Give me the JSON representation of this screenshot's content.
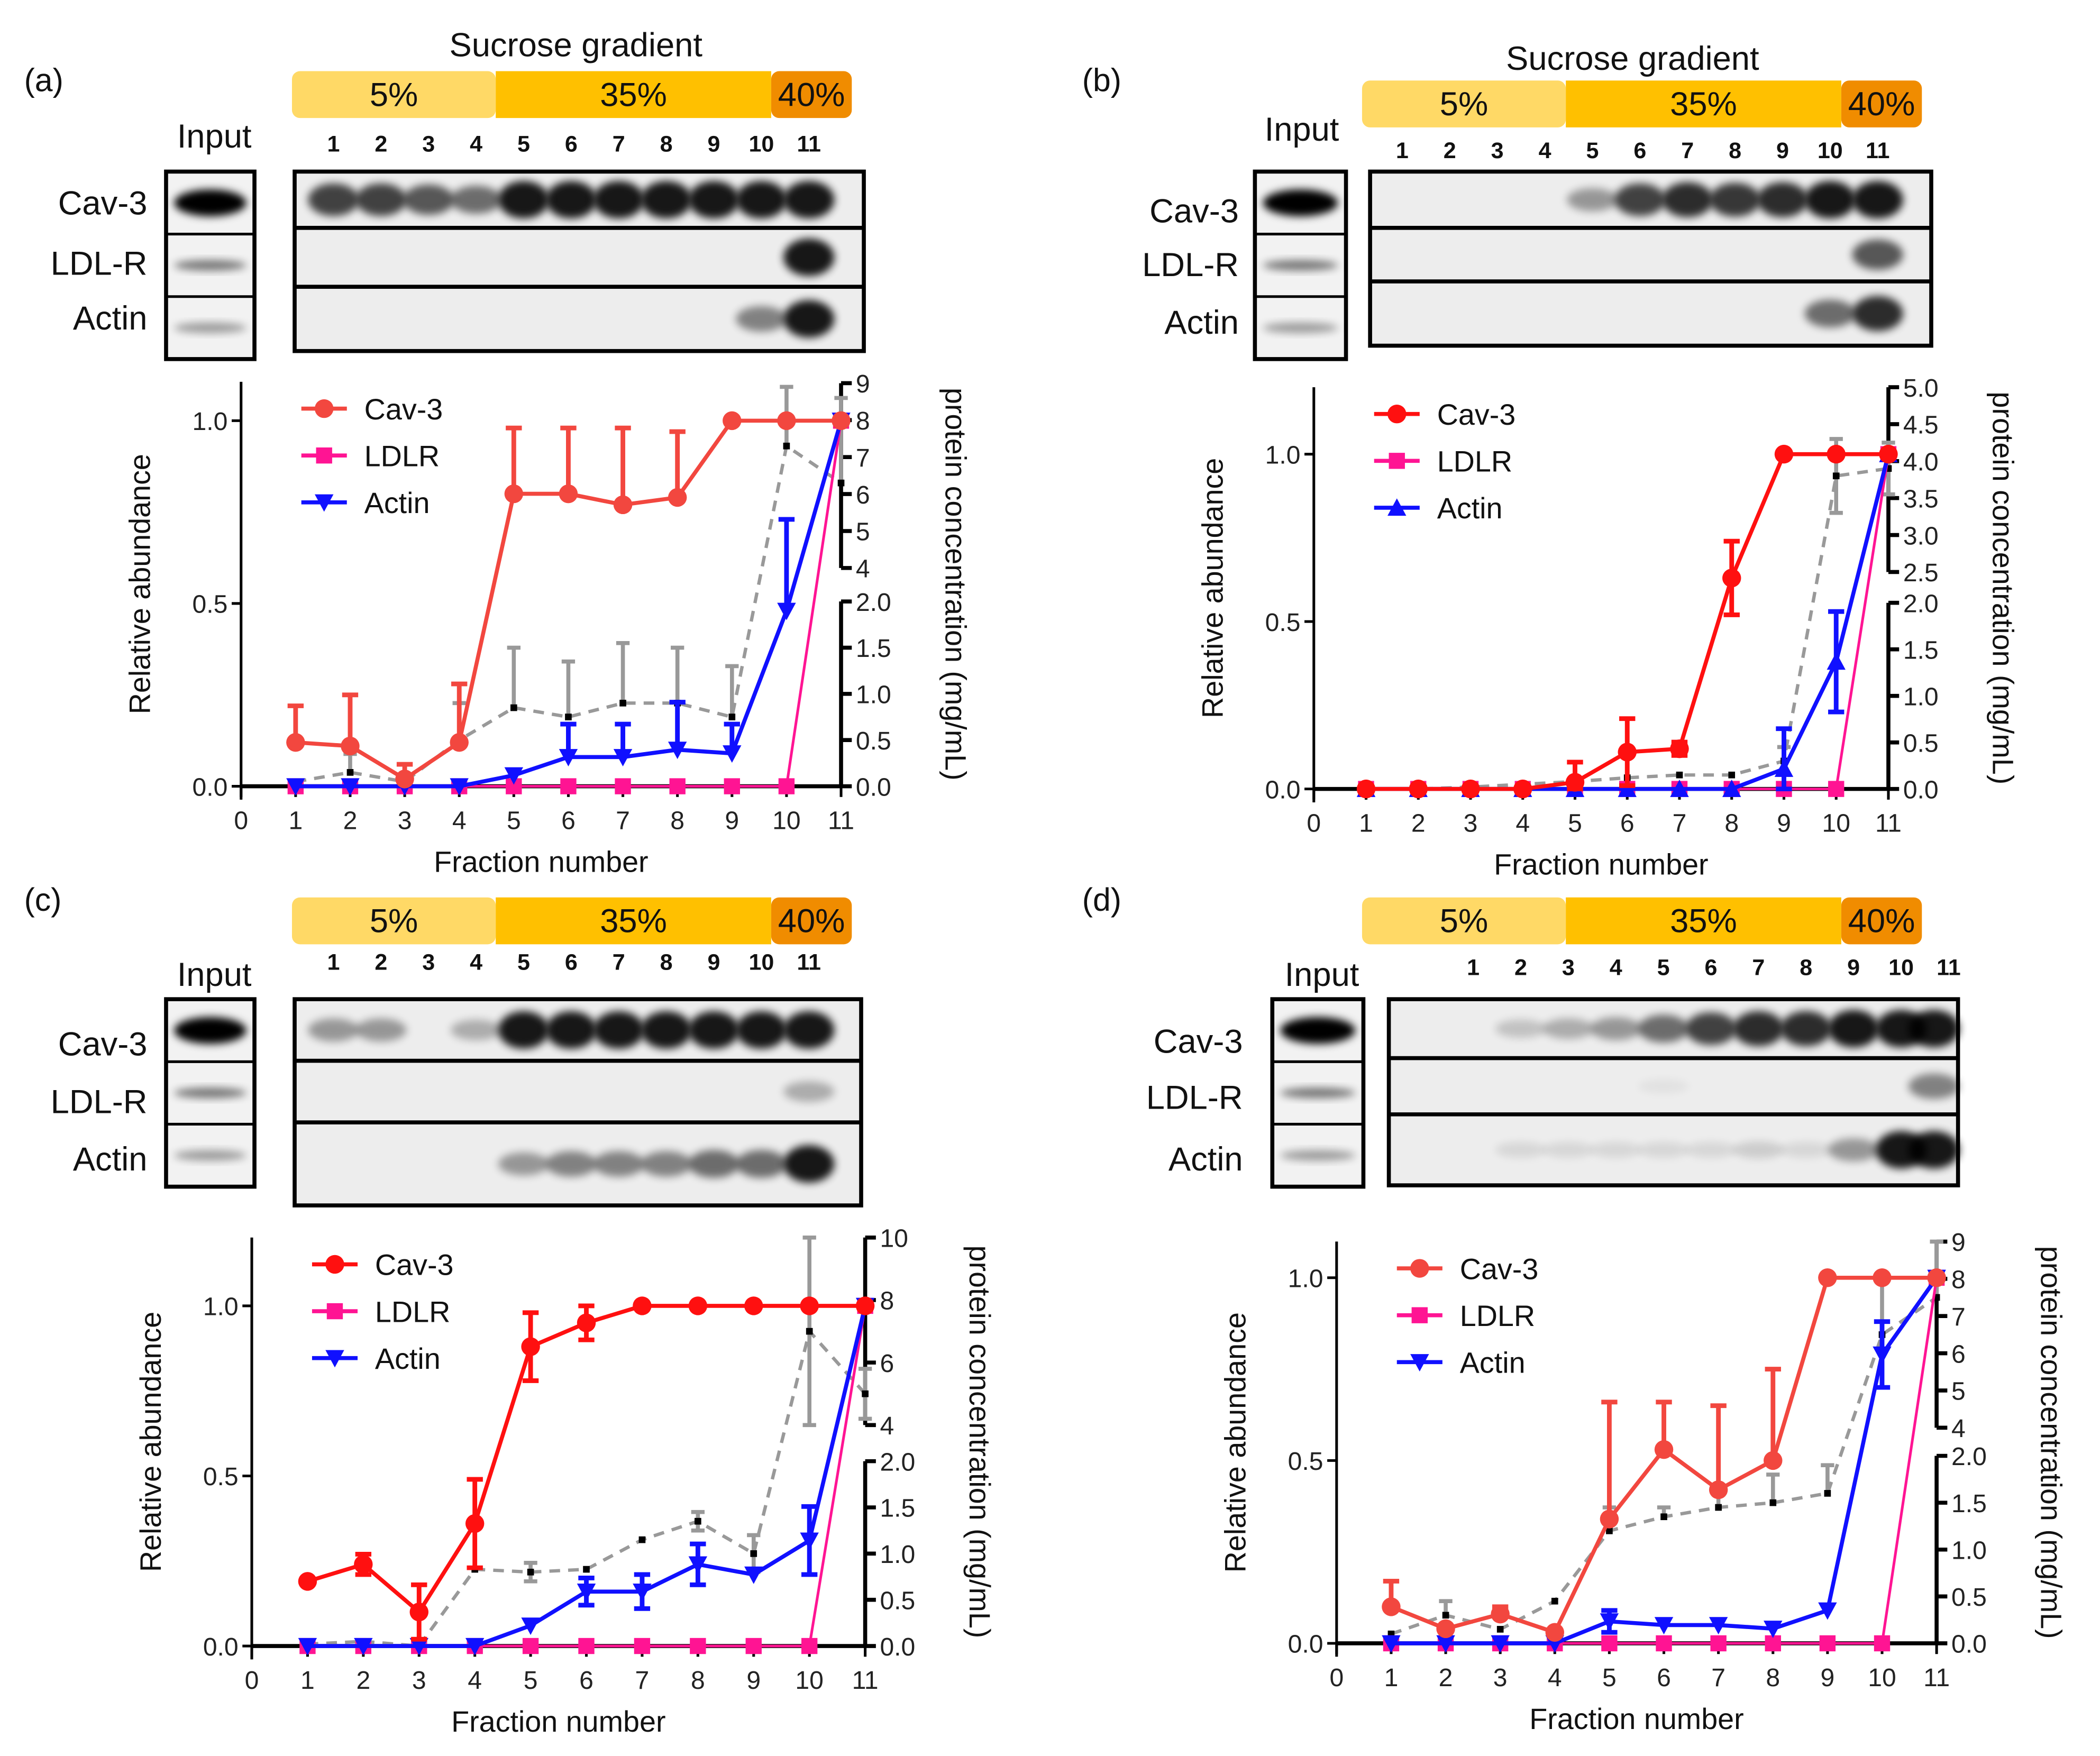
{
  "colors": {
    "cav3_light": "#f2473f",
    "cav3_red": "#ff1010",
    "ldlr": "#ff1493",
    "actin": "#1010ff",
    "protein": "#999999",
    "g5": "#ffd966",
    "g35": "#ffc000",
    "g40": "#f08c00"
  },
  "common": {
    "gradient_title": "Sucrose gradient",
    "gradient_labels": [
      "5%",
      "35%",
      "40%"
    ],
    "fractions": [
      "1",
      "2",
      "3",
      "4",
      "5",
      "6",
      "7",
      "8",
      "9",
      "10",
      "11"
    ],
    "input_label": "Input",
    "blot_labels": [
      "Cav-3",
      "LDL-R",
      "Actin"
    ],
    "xlabel": "Fraction number",
    "ylabel": "Relative abundance",
    "y2label": "protein concentration (mg/mL)",
    "xticks": [
      "0",
      "1",
      "2",
      "3",
      "4",
      "5",
      "6",
      "7",
      "8",
      "9",
      "10",
      "11"
    ],
    "yticks": [
      "0.0",
      "0.5",
      "1.0"
    ],
    "legend": [
      "Cav-3",
      "LDLR",
      "Actin"
    ]
  },
  "chart_data": [
    {
      "panel": "(a)",
      "type": "line",
      "show_gradient_title": true,
      "xlabel": "Fraction number",
      "ylabel": "Relative abundance",
      "y2label": "protein concentration (mg/mL)",
      "ylim": [
        0,
        1.1
      ],
      "y2_lower": {
        "range": [
          0,
          2
        ],
        "ticks": [
          "0.0",
          "0.5",
          "1.0",
          "1.5",
          "2.0"
        ]
      },
      "y2_upper": {
        "range": [
          4,
          9
        ],
        "ticks": [
          "4",
          "5",
          "6",
          "7",
          "8",
          "9"
        ]
      },
      "x": [
        1,
        2,
        3,
        4,
        5,
        6,
        7,
        8,
        9,
        10,
        11
      ],
      "series": [
        {
          "name": "Cav-3",
          "values": [
            0.12,
            0.11,
            0.02,
            0.12,
            0.8,
            0.8,
            0.77,
            0.79,
            1,
            1,
            1
          ],
          "err": [
            0.1,
            0.14,
            0.04,
            0.16,
            0.18,
            0.18,
            0.21,
            0.18,
            0,
            0,
            0
          ],
          "err_dir": "up",
          "marker": "circle"
        },
        {
          "name": "LDLR",
          "values": [
            0,
            0,
            0,
            0,
            0,
            0,
            0,
            0,
            0,
            0,
            1
          ],
          "err": [
            0,
            0,
            0,
            0,
            0,
            0,
            0,
            0,
            0,
            0,
            0
          ],
          "err_dir": "up",
          "marker": "square"
        },
        {
          "name": "Actin",
          "values": [
            0,
            0,
            0,
            0,
            0.03,
            0.08,
            0.08,
            0.1,
            0.09,
            0.48,
            1
          ],
          "err": [
            0,
            0,
            0,
            0,
            0,
            0.09,
            0.09,
            0.13,
            0.08,
            0.25,
            0
          ],
          "err_dir": "up",
          "marker": "triangle-down"
        }
      ],
      "protein": {
        "values": [
          0.05,
          0.15,
          0.05,
          0.5,
          0.85,
          0.75,
          0.9,
          0.9,
          0.75,
          7.3,
          6.3
        ],
        "err": [
          0,
          0.2,
          0,
          0.4,
          0.65,
          0.6,
          0.65,
          0.6,
          0.55,
          1.6,
          2.3
        ],
        "err_dir": "up"
      }
    },
    {
      "panel": "(b)",
      "type": "line",
      "show_gradient_title": true,
      "xlabel": "Fraction number",
      "ylabel": "Relative abundance",
      "y2label": "protein concentration (mg/mL)",
      "ylim": [
        0,
        1.2
      ],
      "y2_lower": {
        "range": [
          0,
          2
        ],
        "ticks": [
          "0.0",
          "0.5",
          "1.0",
          "1.5",
          "2.0"
        ]
      },
      "y2_upper": {
        "range": [
          2.5,
          5
        ],
        "ticks": [
          "2.5",
          "3.0",
          "3.5",
          "4.0",
          "4.5",
          "5.0"
        ]
      },
      "x": [
        1,
        2,
        3,
        4,
        5,
        6,
        7,
        8,
        9,
        10,
        11
      ],
      "series": [
        {
          "name": "Cav-3",
          "values": [
            0,
            0,
            0,
            0,
            0.02,
            0.11,
            0.12,
            0.63,
            1,
            1,
            1
          ],
          "err": [
            0,
            0,
            0,
            0,
            0.06,
            0.1,
            0.02,
            0.11,
            0,
            0,
            0
          ],
          "err_dir": "both",
          "marker": "circle"
        },
        {
          "name": "LDLR",
          "values": [
            0,
            0,
            0,
            0,
            0,
            0,
            0,
            0,
            0,
            0,
            1
          ],
          "err": [
            0,
            0,
            0,
            0,
            0,
            0,
            0,
            0,
            0,
            0,
            0
          ],
          "err_dir": "both",
          "marker": "square"
        },
        {
          "name": "Actin",
          "values": [
            0,
            0,
            0,
            0,
            0,
            0,
            0,
            0,
            0.06,
            0.38,
            1
          ],
          "err": [
            0,
            0,
            0,
            0,
            0,
            0,
            0,
            0,
            0.12,
            0.15,
            0
          ],
          "err_dir": "both",
          "marker": "triangle-up"
        }
      ],
      "protein": {
        "values": [
          0,
          0,
          0.02,
          0.05,
          0.08,
          0.12,
          0.15,
          0.15,
          0.3,
          3.8,
          3.9
        ],
        "err": [
          0,
          0,
          0,
          0,
          0,
          0,
          0,
          0,
          0.15,
          0.5,
          0.35
        ],
        "err_dir": "both"
      }
    },
    {
      "panel": "(c)",
      "type": "line",
      "show_gradient_title": false,
      "xlabel": "Fraction number",
      "ylabel": "Relative abundance",
      "y2label": "protein concentration (mg/mL)",
      "ylim": [
        0,
        1.2
      ],
      "y2_lower": {
        "range": [
          0,
          2
        ],
        "ticks": [
          "0.0",
          "0.5",
          "1.0",
          "1.5",
          "2.0"
        ]
      },
      "y2_upper": {
        "range": [
          4,
          10
        ],
        "ticks": [
          "4",
          "6",
          "8",
          "10"
        ]
      },
      "x": [
        1,
        2,
        3,
        4,
        5,
        6,
        7,
        8,
        9,
        10,
        11
      ],
      "series": [
        {
          "name": "Cav-3",
          "values": [
            0.19,
            0.24,
            0.1,
            0.36,
            0.88,
            0.95,
            1,
            1,
            1,
            1,
            1
          ],
          "err": [
            0,
            0.03,
            0.08,
            0.13,
            0.1,
            0.05,
            0,
            0,
            0,
            0,
            0
          ],
          "err_dir": "both",
          "marker": "circle"
        },
        {
          "name": "LDLR",
          "values": [
            0,
            0,
            0,
            0,
            0,
            0,
            0,
            0,
            0,
            0,
            1
          ],
          "err": [
            0,
            0,
            0,
            0,
            0,
            0,
            0,
            0,
            0,
            0,
            0
          ],
          "err_dir": "both",
          "marker": "square"
        },
        {
          "name": "Actin",
          "values": [
            0,
            0,
            0,
            0,
            0.06,
            0.16,
            0.16,
            0.24,
            0.21,
            0.31,
            1
          ],
          "err": [
            0,
            0,
            0,
            0,
            0,
            0.04,
            0.05,
            0.06,
            0,
            0.1,
            0
          ],
          "err_dir": "both",
          "marker": "triangle-down"
        }
      ],
      "protein": {
        "values": [
          0.02,
          0.05,
          0,
          0.83,
          0.8,
          0.83,
          1.15,
          1.35,
          1.0,
          7.0,
          5.0
        ],
        "err": [
          0,
          0,
          0,
          0,
          0.1,
          0,
          0,
          0.1,
          0.2,
          3,
          0.8
        ],
        "err_dir": "both"
      }
    },
    {
      "panel": "(d)",
      "type": "line",
      "show_gradient_title": false,
      "xlabel": "Fraction number",
      "ylabel": "Relative abundance",
      "y2label": "protein concentration (mg/mL)",
      "ylim": [
        0,
        1.1
      ],
      "y2_lower": {
        "range": [
          0,
          2
        ],
        "ticks": [
          "0.0",
          "0.5",
          "1.0",
          "1.5",
          "2.0"
        ]
      },
      "y2_upper": {
        "range": [
          4,
          9
        ],
        "ticks": [
          "4",
          "5",
          "6",
          "7",
          "8",
          "9"
        ]
      },
      "x": [
        1,
        2,
        3,
        4,
        5,
        6,
        7,
        8,
        9,
        10,
        11
      ],
      "series": [
        {
          "name": "Cav-3",
          "values": [
            0.1,
            0.04,
            0.08,
            0.03,
            0.34,
            0.53,
            0.42,
            0.5,
            1,
            1,
            1
          ],
          "err": [
            0.07,
            0,
            0.02,
            0,
            0.32,
            0.13,
            0.23,
            0.25,
            0,
            0,
            0
          ],
          "err_dir": "up",
          "marker": "circle"
        },
        {
          "name": "LDLR",
          "values": [
            0,
            0,
            0,
            0,
            0,
            0,
            0,
            0,
            0,
            0,
            1
          ],
          "err": [
            0,
            0,
            0,
            0,
            0,
            0,
            0,
            0,
            0,
            0,
            0
          ],
          "err_dir": "up",
          "marker": "square"
        },
        {
          "name": "Actin",
          "values": [
            0,
            0,
            0,
            0,
            0.06,
            0.05,
            0.05,
            0.04,
            0.09,
            0.79,
            1
          ],
          "err": [
            0,
            0,
            0,
            0,
            0.03,
            0,
            0,
            0,
            0,
            0.09,
            0
          ],
          "err_dir": "both",
          "marker": "triangle-down"
        }
      ],
      "protein": {
        "values": [
          0.1,
          0.3,
          0.15,
          0.45,
          1.2,
          1.35,
          1.45,
          1.5,
          1.6,
          6.5,
          7.5
        ],
        "err": [
          0,
          0.15,
          0,
          0,
          0.25,
          0.1,
          0.15,
          0.3,
          0.3,
          1.5,
          1.5
        ],
        "err_dir": "up"
      }
    }
  ]
}
